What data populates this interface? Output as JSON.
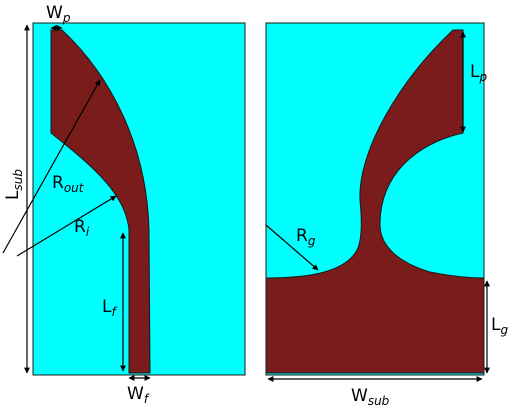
{
  "colors": {
    "substrate": "#00ffff",
    "metal": "#7b1c1c",
    "outline": "#1a1a1a",
    "dimension_line": "#000000"
  },
  "panels": [
    {
      "name": "front-view",
      "shows": "patch and feed line"
    },
    {
      "name": "back-view",
      "shows": "ground plane"
    }
  ],
  "labels": {
    "wp": {
      "main": "W",
      "sub": "p"
    },
    "lsub": {
      "main": "L",
      "sub": "sub"
    },
    "rout": {
      "main": "R",
      "sub": "out"
    },
    "ri": {
      "main": "R",
      "sub": "i"
    },
    "lf": {
      "main": "L",
      "sub": "f"
    },
    "wf": {
      "main": "W",
      "sub": "f"
    },
    "lp": {
      "main": "L",
      "sub": "p"
    },
    "rg": {
      "main": "R",
      "sub": "g"
    },
    "lg": {
      "main": "L",
      "sub": "g"
    },
    "wsub": {
      "main": "W",
      "sub": "sub"
    }
  }
}
